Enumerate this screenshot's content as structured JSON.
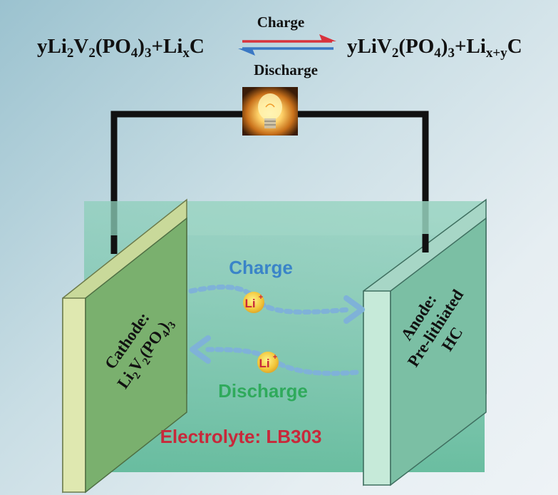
{
  "equation": {
    "left": {
      "parts": [
        {
          "t": "yLi",
          "s": ""
        },
        {
          "t": "2",
          "s": "sub"
        },
        {
          "t": "V",
          "s": ""
        },
        {
          "t": "2",
          "s": "sub"
        },
        {
          "t": "(PO",
          "s": ""
        },
        {
          "t": "4",
          "s": "sub"
        },
        {
          "t": ")",
          "s": ""
        },
        {
          "t": "3",
          "s": "sub"
        },
        {
          "t": "+Li",
          "s": ""
        },
        {
          "t": "x",
          "s": "sub"
        },
        {
          "t": "C",
          "s": ""
        }
      ]
    },
    "right": {
      "parts": [
        {
          "t": "yLiV",
          "s": ""
        },
        {
          "t": "2",
          "s": "sub"
        },
        {
          "t": "(PO",
          "s": ""
        },
        {
          "t": "4",
          "s": "sub"
        },
        {
          "t": ")",
          "s": ""
        },
        {
          "t": "3",
          "s": "sub"
        },
        {
          "t": "+Li",
          "s": ""
        },
        {
          "t": "x+y",
          "s": "sub"
        },
        {
          "t": "C",
          "s": ""
        }
      ]
    },
    "charge_label": "Charge",
    "discharge_label": "Discharge",
    "charge_arrow_color": "#d8323c",
    "discharge_arrow_color": "#3a78c4"
  },
  "bulb": {
    "icon": "light-bulb-icon"
  },
  "cell": {
    "electrolyte_color": "#6fbfa3",
    "cathode": {
      "line1": "Cathode:",
      "line2_parts": [
        {
          "t": "Li",
          "s": ""
        },
        {
          "t": "2",
          "s": "sub"
        },
        {
          "t": "V",
          "s": ""
        },
        {
          "t": "2",
          "s": "sub"
        },
        {
          "t": "(PO",
          "s": ""
        },
        {
          "t": "4",
          "s": "sub"
        },
        {
          "t": ")",
          "s": ""
        },
        {
          "t": "3",
          "s": "sub"
        }
      ]
    },
    "anode": {
      "line1": "Anode:",
      "line2": "Pre-lithiated",
      "line3": "HC"
    },
    "charge_label": "Charge",
    "charge_color": "#3a84c8",
    "discharge_label": "Discharge",
    "discharge_color": "#2faa5c",
    "ion_label": "Li",
    "ion_charge": "+",
    "electrolyte_label": "Electrolyte: LB303",
    "electrolyte_label_color": "#c8283a"
  }
}
